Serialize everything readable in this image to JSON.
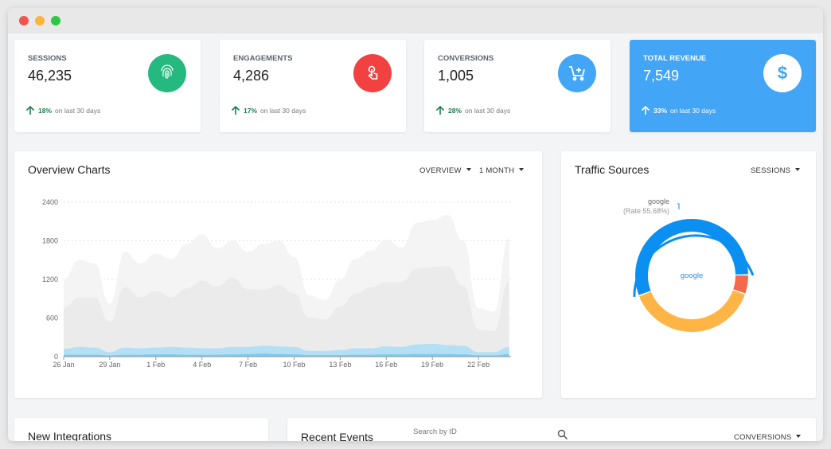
{
  "window": {
    "controls": [
      "close",
      "minimize",
      "maximize"
    ]
  },
  "stats": [
    {
      "label": "SESSIONS",
      "value": "46,235",
      "change": "18%",
      "period": "on last 30 days",
      "icon": "fingerprint-icon",
      "color": "#26b97f"
    },
    {
      "label": "ENGAGEMENTS",
      "value": "4,286",
      "change": "17%",
      "period": "on last 30 days",
      "icon": "touch-icon",
      "color": "#f24141"
    },
    {
      "label": "CONVERSIONS",
      "value": "1,005",
      "change": "28%",
      "period": "on last 30 days",
      "icon": "cart-add-icon",
      "color": "#42a5f5"
    },
    {
      "label": "TOTAL REVENUE",
      "value": "7,549",
      "change": "33%",
      "period": "on last 30 days",
      "icon": "dollar-icon",
      "color": "#42a5f5"
    }
  ],
  "overview": {
    "title": "Overview Charts",
    "filter1": "OVERVIEW",
    "filter2": "1 MONTH"
  },
  "traffic": {
    "title": "Traffic Sources",
    "filter": "SESSIONS",
    "center_label": "google",
    "tooltip_name": "google",
    "tooltip_rate": "(Rate 55.68%)",
    "slices": [
      {
        "name": "google",
        "value": 55.68,
        "color": "#0b8ff0"
      },
      {
        "name": "",
        "value": 5.5,
        "color": "#f4694a"
      },
      {
        "name": "",
        "value": 38.82,
        "color": "#ffb545"
      }
    ]
  },
  "bottom": {
    "integrations_title": "New Integrations",
    "events_title": "Recent Events",
    "search_placeholder": "Search by ID",
    "events_filter": "CONVERSIONS"
  },
  "chart_data": {
    "type": "area",
    "ylim": [
      0,
      2400
    ],
    "yticks": [
      "0",
      "600",
      "1200",
      "1800",
      "2400"
    ],
    "xticks": [
      "26 Jan",
      "29 Jan",
      "1 Feb",
      "4 Feb",
      "7 Feb",
      "10 Feb",
      "13 Feb",
      "16 Feb",
      "19 Feb",
      "22 Feb"
    ],
    "x": [
      "26 Jan",
      "27 Jan",
      "28 Jan",
      "29 Jan",
      "30 Jan",
      "31 Jan",
      "1 Feb",
      "2 Feb",
      "3 Feb",
      "4 Feb",
      "5 Feb",
      "6 Feb",
      "7 Feb",
      "8 Feb",
      "9 Feb",
      "10 Feb",
      "11 Feb",
      "12 Feb",
      "13 Feb",
      "14 Feb",
      "15 Feb",
      "16 Feb",
      "17 Feb",
      "18 Feb",
      "19 Feb",
      "20 Feb",
      "21 Feb",
      "22 Feb",
      "23 Feb",
      "24 Feb"
    ],
    "grid": true,
    "series": [
      {
        "color": "#f4f4f4",
        "values": [
          1200,
          1500,
          1450,
          820,
          1630,
          1450,
          1600,
          1520,
          1750,
          1900,
          1680,
          1800,
          1630,
          1750,
          1800,
          1550,
          950,
          880,
          1200,
          1520,
          1650,
          1820,
          1700,
          2080,
          2120,
          2200,
          1800,
          750,
          700,
          1850
        ]
      },
      {
        "color": "#ebebeb",
        "values": [
          760,
          920,
          920,
          540,
          1080,
          920,
          1020,
          920,
          1060,
          1180,
          1090,
          1230,
          1050,
          1040,
          1110,
          980,
          600,
          580,
          780,
          980,
          1080,
          1160,
          1160,
          1370,
          1390,
          1410,
          1100,
          420,
          400,
          1180
        ]
      },
      {
        "color": "#b3e0f4",
        "values": [
          120,
          150,
          140,
          70,
          140,
          130,
          140,
          150,
          140,
          130,
          130,
          150,
          150,
          170,
          160,
          150,
          90,
          90,
          100,
          130,
          130,
          160,
          150,
          190,
          200,
          180,
          170,
          70,
          70,
          150
        ]
      },
      {
        "color": "#7ccbf2",
        "values": [
          30,
          30,
          30,
          20,
          30,
          30,
          35,
          35,
          30,
          30,
          30,
          35,
          40,
          50,
          40,
          35,
          25,
          25,
          25,
          30,
          30,
          35,
          35,
          40,
          40,
          40,
          35,
          20,
          20,
          40
        ]
      }
    ]
  }
}
